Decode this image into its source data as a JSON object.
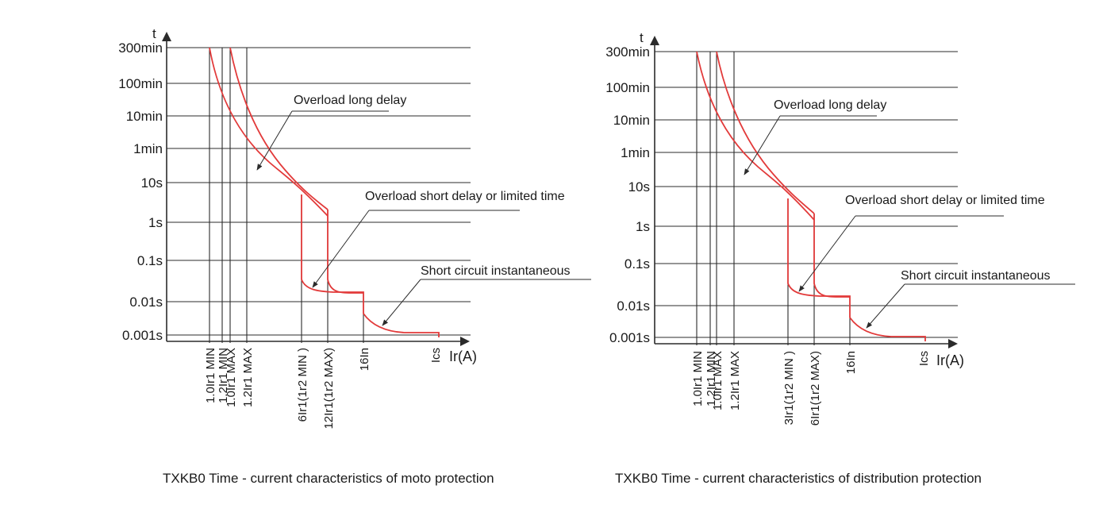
{
  "colors": {
    "curve": "#e23a3a",
    "line": "#2b2b2b",
    "text": "#1a1a1a",
    "background": "#ffffff"
  },
  "chart_data": [
    {
      "type": "line",
      "title": "",
      "ylabel": "t",
      "xlabel": "Ir(A)",
      "y_scale": "log",
      "y_ticks": [
        "300min",
        "100min",
        "10min",
        "1min",
        "10s",
        "1s",
        "0.1s",
        "0.01s",
        "0.001s"
      ],
      "x_ticks": [
        "1.0Ir1 MIN",
        "1.2Ir1 MIN",
        "1.0Ir1 MAX",
        "1.2Ir1 MAX",
        "6Ir1(1r2 MIN )",
        "12Ir1(1r2 MAX)",
        "16In",
        "Ics"
      ],
      "grid": true,
      "series": [],
      "annotations": [
        "Overload long delay",
        "Overload short delay or limited time",
        "Short circuit instantaneous"
      ],
      "caption": "TXKB0 Time - current characteristics of moto protection"
    },
    {
      "type": "line",
      "title": "",
      "ylabel": "t",
      "xlabel": "Ir(A)",
      "y_scale": "log",
      "y_ticks": [
        "300min",
        "100min",
        "10min",
        "1min",
        "10s",
        "1s",
        "0.1s",
        "0.01s",
        "0.001s"
      ],
      "x_ticks": [
        "1.0Ir1 MIN",
        "1.2Ir1 MIN",
        "1.0Ir1 MAX",
        "1.2Ir1 MAX",
        "3Ir1(1r2 MIN )",
        "6Ir1(1r2 MAX)",
        "16In",
        "Ics"
      ],
      "grid": true,
      "series": [],
      "annotations": [
        "Overload long delay",
        "Overload short delay or limited time",
        "Short circuit instantaneous"
      ],
      "caption": "TXKB0 Time - current characteristics of distribution protection"
    }
  ]
}
